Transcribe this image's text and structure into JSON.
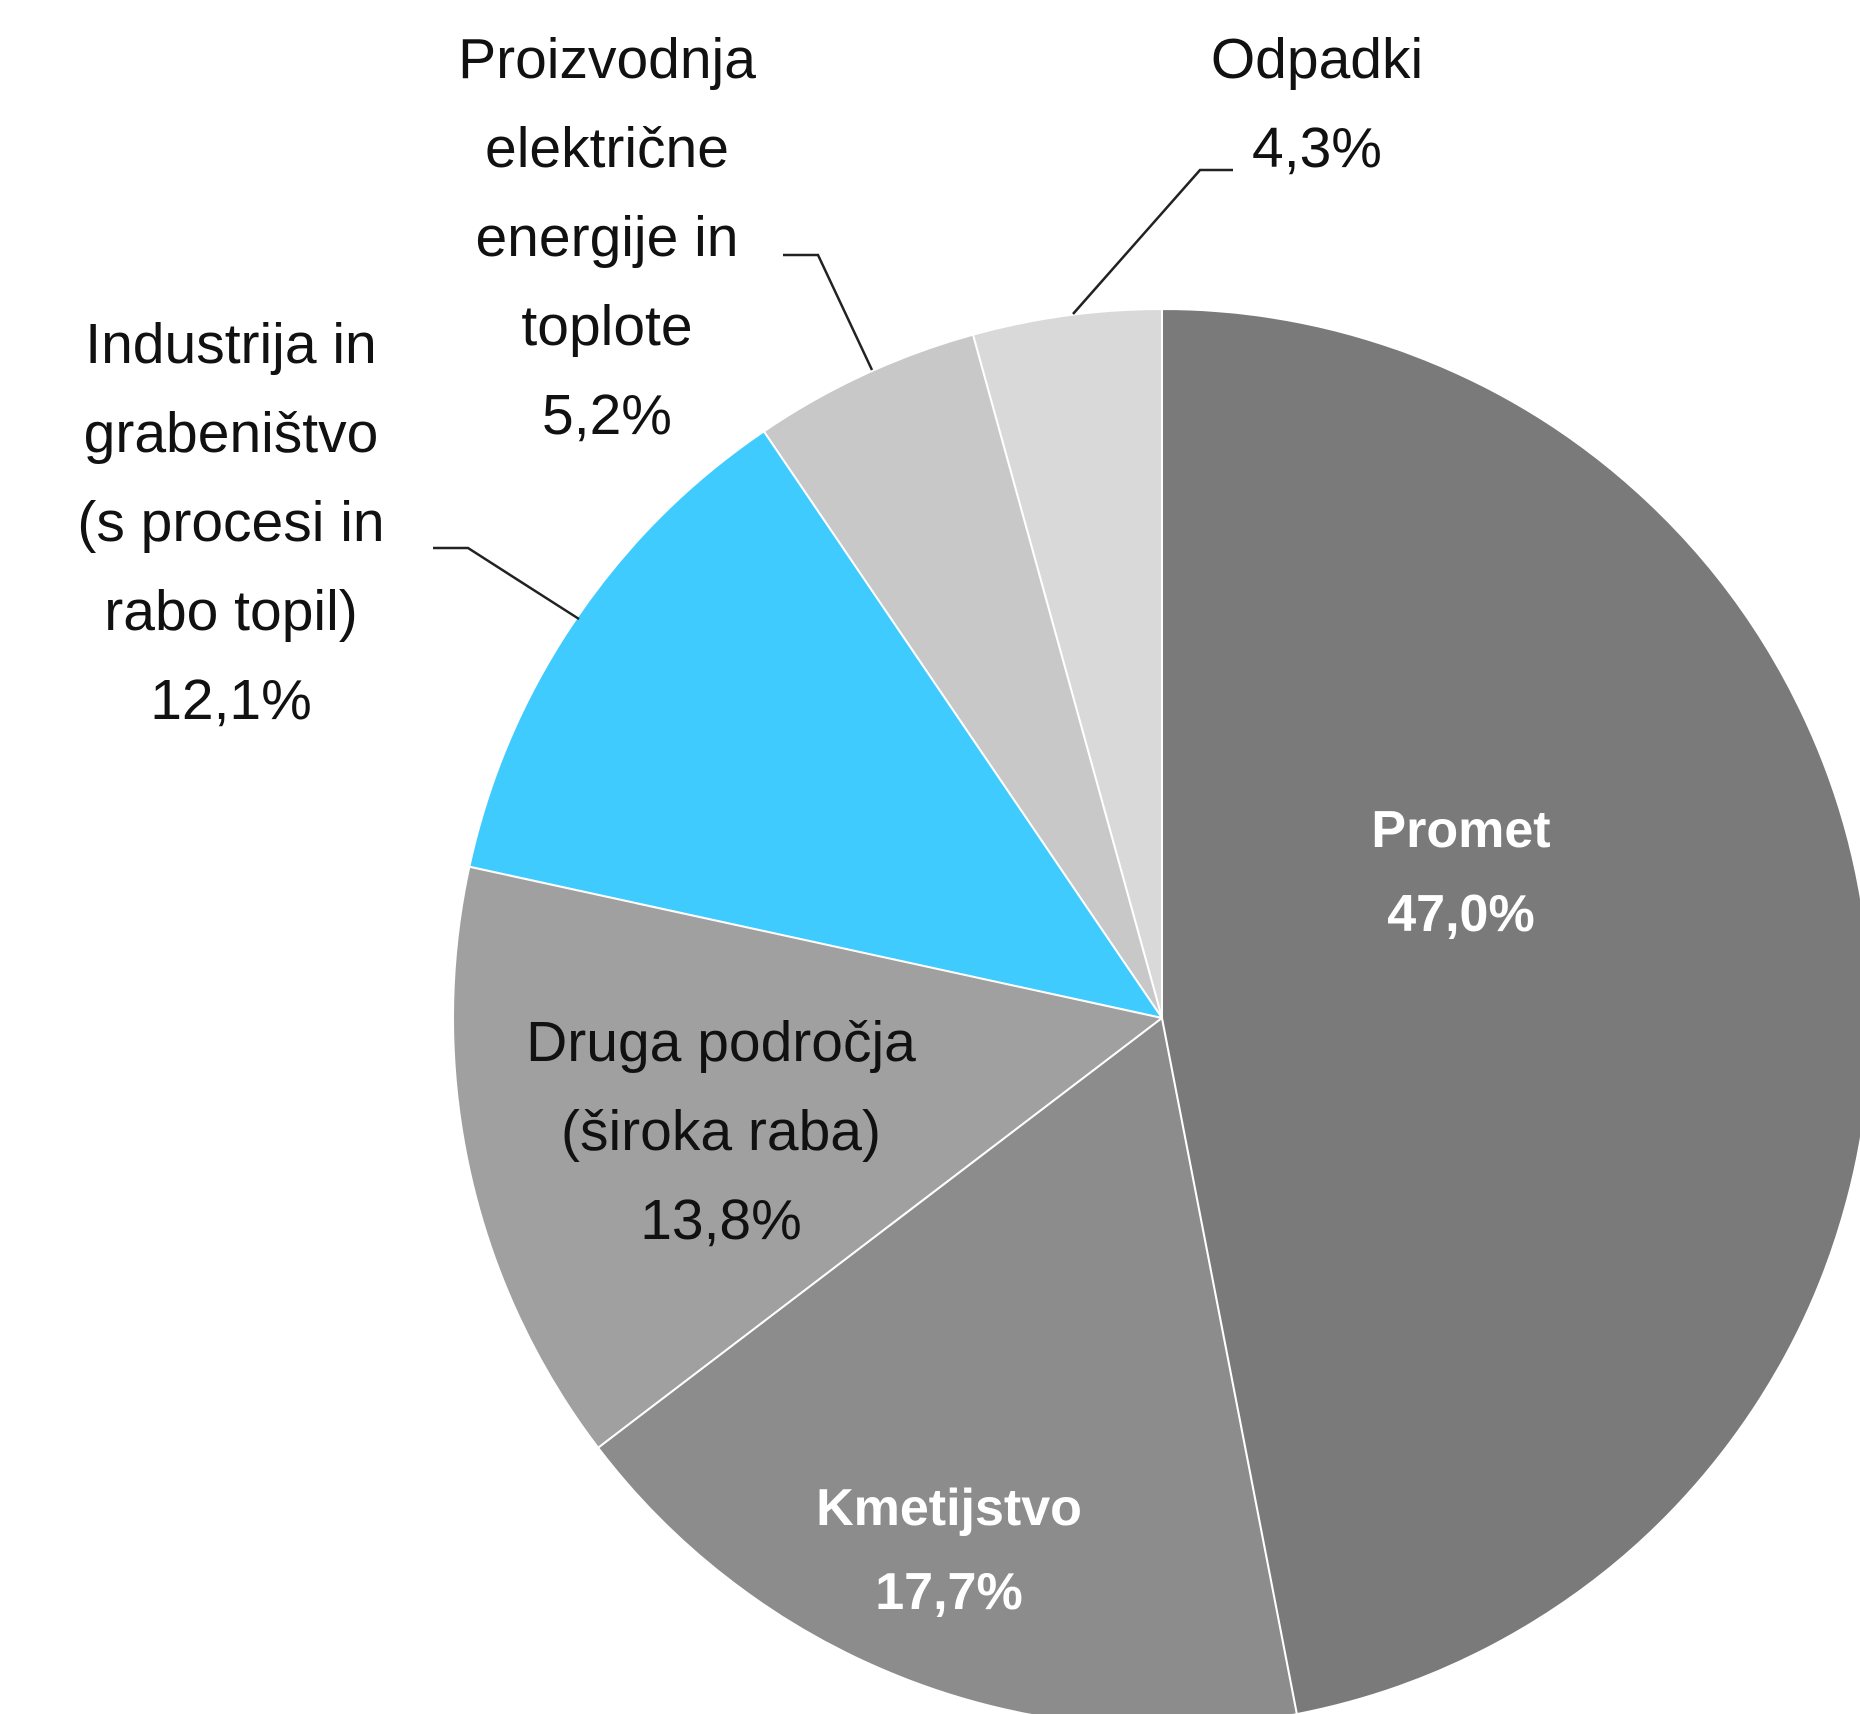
{
  "chart_data": {
    "type": "pie",
    "categories": [
      "Promet",
      "Kmetijstvo",
      "Druga področja (široka raba)",
      "Industrija in grabeništvo (s procesi in rabo topil)",
      "Proizvodnja električne energije in toplote",
      "Odpadki"
    ],
    "values": [
      47.0,
      17.7,
      13.8,
      12.1,
      5.2,
      4.3
    ],
    "value_labels": [
      "47,0%",
      "17,7%",
      "13,8%",
      "12,1%",
      "5,2%",
      "4,3%"
    ],
    "colors": [
      "#7a7a7a",
      "#8c8c8c",
      "#a0a0a0",
      "#40cbff",
      "#c8c8c8",
      "#d9d9d9"
    ]
  }
}
